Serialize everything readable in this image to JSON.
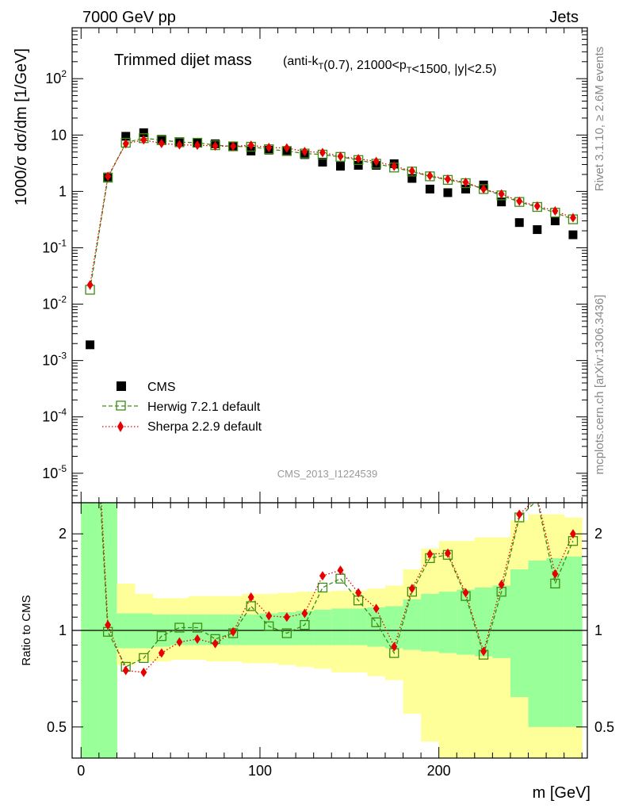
{
  "header": {
    "left": "7000 GeV pp",
    "right": "Jets"
  },
  "side_text": {
    "rivet": "Rivet 3.1.10, ≥ 2.6M events",
    "mcplots": "mcplots.cern.ch [arXiv:1306.3436]"
  },
  "analysis_id": "CMS_2013_I1224539",
  "colors": {
    "data": "#000000",
    "herwig": "#3c8c14",
    "sherpa": "#e60000",
    "band_inner": "#99ff99",
    "band_outer": "#ffff99"
  },
  "chart_data": [
    {
      "type": "scatter",
      "panel": "main",
      "title": "Trimmed dijet mass",
      "title_detail": "(anti-k_T(0.7), 21000<p_T<1500, |y|<2.5)",
      "ylabel": "1000/σ dσ/dm [1/GeV]",
      "yscale": "log",
      "ylim": [
        3e-06,
        800
      ],
      "xlim": [
        -5,
        283
      ],
      "yticks": [
        "10^-5",
        "10^-4",
        "10^-3",
        "10^-2",
        "10^-1",
        "1",
        "10",
        "10^2"
      ],
      "legend_placement": "bottom-left",
      "x": [
        5,
        15,
        25,
        35,
        45,
        55,
        65,
        75,
        85,
        95,
        105,
        115,
        125,
        135,
        145,
        155,
        165,
        175,
        185,
        195,
        205,
        215,
        225,
        235,
        245,
        255,
        265,
        275
      ],
      "series": [
        {
          "name": "CMS",
          "marker": "square",
          "values": [
            0.0019,
            1.8,
            9.5,
            11.0,
            8.4,
            7.3,
            7.2,
            7.0,
            6.4,
            5.2,
            5.4,
            5.3,
            4.5,
            3.3,
            2.8,
            2.9,
            2.9,
            3.1,
            1.7,
            1.1,
            0.95,
            1.1,
            1.3,
            0.65,
            0.28,
            0.21,
            0.3,
            0.17
          ]
        },
        {
          "name": "Herwig 7.2.1 default",
          "marker": "open-square",
          "line": "dashed",
          "values": [
            0.018,
            1.75,
            7.3,
            8.8,
            8.1,
            7.5,
            7.3,
            6.6,
            6.3,
            6.2,
            5.6,
            5.2,
            4.7,
            4.5,
            4.1,
            3.6,
            3.1,
            2.65,
            2.25,
            1.85,
            1.6,
            1.4,
            1.1,
            0.85,
            0.65,
            0.53,
            0.42,
            0.32
          ]
        },
        {
          "name": "Sherpa 2.2.9 default",
          "marker": "diamond",
          "line": "dotted",
          "values": [
            0.022,
            1.85,
            7.0,
            8.2,
            7.1,
            6.7,
            6.6,
            6.4,
            6.3,
            6.6,
            6.0,
            5.9,
            5.1,
            4.9,
            4.2,
            3.8,
            3.4,
            2.8,
            2.3,
            1.9,
            1.65,
            1.45,
            1.1,
            0.9,
            0.67,
            0.55,
            0.45,
            0.34
          ]
        }
      ]
    },
    {
      "type": "line",
      "panel": "ratio",
      "ylabel": "Ratio to CMS",
      "xlabel": "m [GeV]",
      "yscale": "log",
      "ylim": [
        0.4,
        2.5
      ],
      "xlim": [
        -5,
        283
      ],
      "xticks": [
        0,
        100,
        200
      ],
      "yticks": [
        0.5,
        1,
        2
      ],
      "x": [
        5,
        15,
        25,
        35,
        45,
        55,
        65,
        75,
        85,
        95,
        105,
        115,
        125,
        135,
        145,
        155,
        165,
        175,
        185,
        195,
        205,
        215,
        225,
        235,
        245,
        255,
        265,
        275
      ],
      "bands": {
        "edges": [
          0,
          10,
          20,
          30,
          40,
          50,
          60,
          70,
          80,
          90,
          100,
          110,
          120,
          130,
          140,
          150,
          160,
          170,
          180,
          190,
          200,
          210,
          220,
          230,
          240,
          250,
          260,
          270,
          280
        ],
        "outer": {
          "lo": [
            0.1,
            0.1,
            0.78,
            0.8,
            0.8,
            0.81,
            0.81,
            0.8,
            0.8,
            0.79,
            0.79,
            0.78,
            0.77,
            0.76,
            0.74,
            0.74,
            0.72,
            0.7,
            0.55,
            0.45,
            0.38,
            0.38,
            0.38,
            0.38,
            0.38,
            0.3,
            0.3,
            0.3
          ],
          "hi": [
            3.0,
            3.0,
            1.4,
            1.3,
            1.26,
            1.26,
            1.28,
            1.28,
            1.28,
            1.3,
            1.3,
            1.31,
            1.32,
            1.32,
            1.33,
            1.33,
            1.35,
            1.38,
            1.55,
            1.8,
            1.9,
            1.9,
            1.95,
            1.95,
            2.2,
            2.3,
            2.3,
            2.25
          ]
        },
        "inner": {
          "lo": [
            0.1,
            0.1,
            0.88,
            0.88,
            0.89,
            0.9,
            0.9,
            0.9,
            0.9,
            0.9,
            0.9,
            0.9,
            0.9,
            0.9,
            0.9,
            0.9,
            0.89,
            0.88,
            0.87,
            0.86,
            0.85,
            0.84,
            0.83,
            0.82,
            0.62,
            0.5,
            0.5,
            0.5
          ],
          "hi": [
            3.0,
            3.0,
            1.13,
            1.13,
            1.12,
            1.12,
            1.12,
            1.12,
            1.12,
            1.12,
            1.13,
            1.14,
            1.15,
            1.16,
            1.17,
            1.17,
            1.18,
            1.19,
            1.25,
            1.3,
            1.32,
            1.34,
            1.36,
            1.38,
            1.55,
            1.65,
            1.68,
            1.7
          ]
        }
      },
      "series": [
        {
          "name": "Herwig 7.2.1 default",
          "values": [
            9.5,
            0.99,
            0.77,
            0.82,
            0.96,
            1.02,
            1.02,
            0.94,
            0.98,
            1.19,
            1.03,
            0.98,
            1.04,
            1.36,
            1.45,
            1.24,
            1.06,
            0.85,
            1.32,
            1.68,
            1.72,
            1.28,
            0.84,
            1.32,
            2.25,
            2.55,
            1.4,
            1.9
          ]
        },
        {
          "name": "Sherpa 2.2.9 default",
          "values": [
            11.5,
            1.04,
            0.75,
            0.74,
            0.85,
            0.92,
            0.94,
            0.91,
            0.99,
            1.27,
            1.11,
            1.1,
            1.13,
            1.48,
            1.54,
            1.31,
            1.17,
            0.89,
            1.35,
            1.73,
            1.74,
            1.31,
            0.86,
            1.39,
            2.3,
            2.6,
            1.5,
            2.0
          ]
        }
      ]
    }
  ]
}
